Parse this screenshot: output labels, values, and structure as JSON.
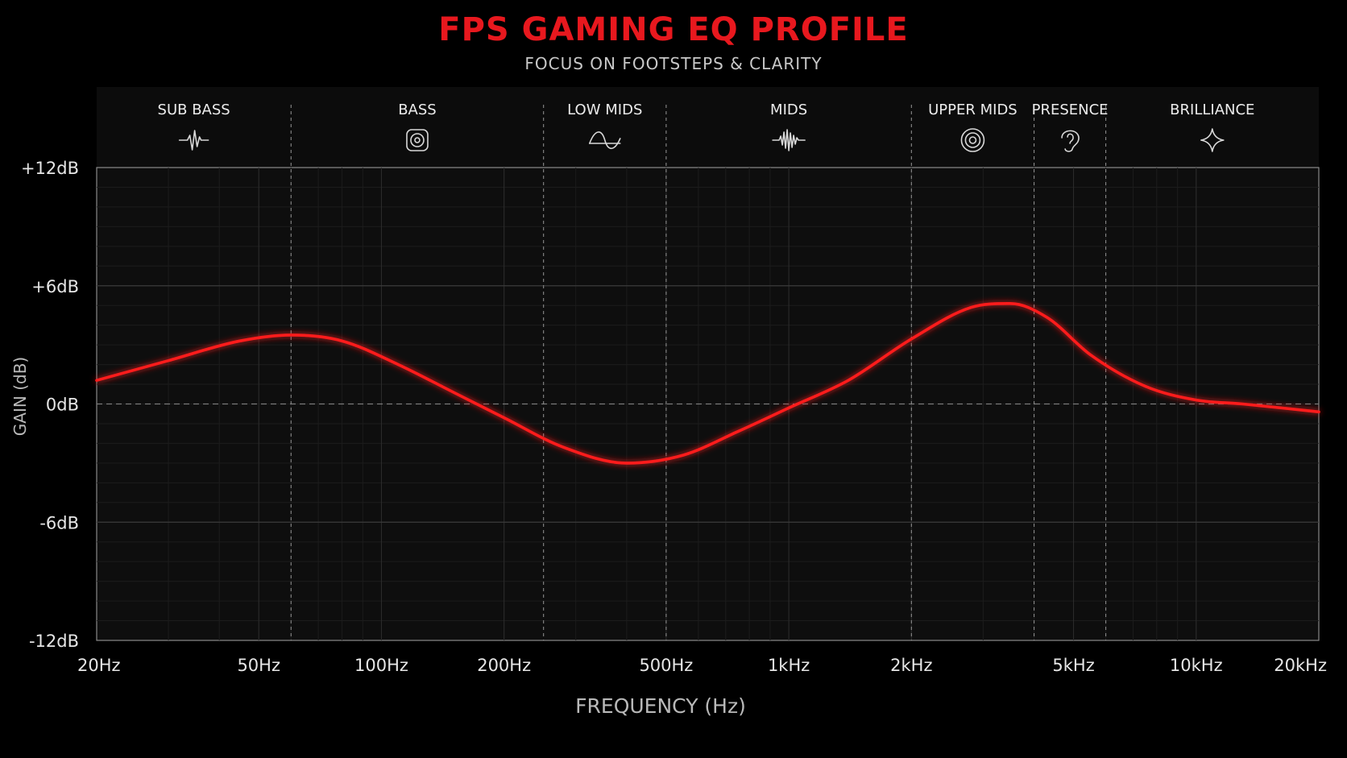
{
  "chart_data": {
    "type": "line",
    "title": "FPS GAMING EQ PROFILE",
    "subtitle": "FOCUS ON FOOTSTEPS & CLARITY",
    "xlabel": "FREQUENCY (Hz)",
    "ylabel": "GAIN (dB)",
    "x_scale": "log",
    "xlim": [
      20,
      20000
    ],
    "ylim": [
      -12,
      12
    ],
    "grid": true,
    "y_ticks": [
      12,
      6,
      0,
      -6,
      -12
    ],
    "y_tick_labels": [
      "+12dB",
      "+6dB",
      "0dB",
      "-6dB",
      "-12dB"
    ],
    "x_ticks": [
      20,
      50,
      100,
      200,
      500,
      1000,
      2000,
      5000,
      10000,
      20000
    ],
    "x_tick_labels": [
      "20Hz",
      "50Hz",
      "100Hz",
      "200Hz",
      "500Hz",
      "1kHz",
      "2kHz",
      "5kHz",
      "10kHz",
      "20kHz"
    ],
    "bands": [
      {
        "name": "SUB BASS",
        "icon": "waveform-icon",
        "range": [
          20,
          60
        ]
      },
      {
        "name": "BASS",
        "icon": "speaker-icon",
        "range": [
          60,
          250
        ]
      },
      {
        "name": "LOW MIDS",
        "icon": "sine-wave-icon",
        "range": [
          250,
          500
        ]
      },
      {
        "name": "MIDS",
        "icon": "audio-wave-icon",
        "range": [
          500,
          2000
        ]
      },
      {
        "name": "UPPER MIDS",
        "icon": "target-rings-icon",
        "range": [
          2000,
          4000
        ]
      },
      {
        "name": "PRESENCE",
        "icon": "ear-icon",
        "range": [
          4000,
          6000
        ]
      },
      {
        "name": "BRILLIANCE",
        "icon": "sparkle-icon",
        "range": [
          6000,
          20000
        ]
      }
    ],
    "series": [
      {
        "color": "#ff1a1a",
        "x": [
          20,
          30,
          45,
          60,
          80,
          110,
          150,
          200,
          280,
          400,
          550,
          750,
          1000,
          1400,
          2000,
          2800,
          3500,
          4300,
          5500,
          7500,
          10000,
          13000,
          20000
        ],
        "y": [
          1.2,
          2.2,
          3.2,
          3.5,
          3.2,
          2.0,
          0.6,
          -0.7,
          -2.2,
          -3.0,
          -2.6,
          -1.4,
          -0.2,
          1.2,
          3.3,
          4.9,
          5.1,
          4.4,
          2.5,
          0.9,
          0.2,
          0.0,
          -0.4
        ]
      }
    ]
  }
}
